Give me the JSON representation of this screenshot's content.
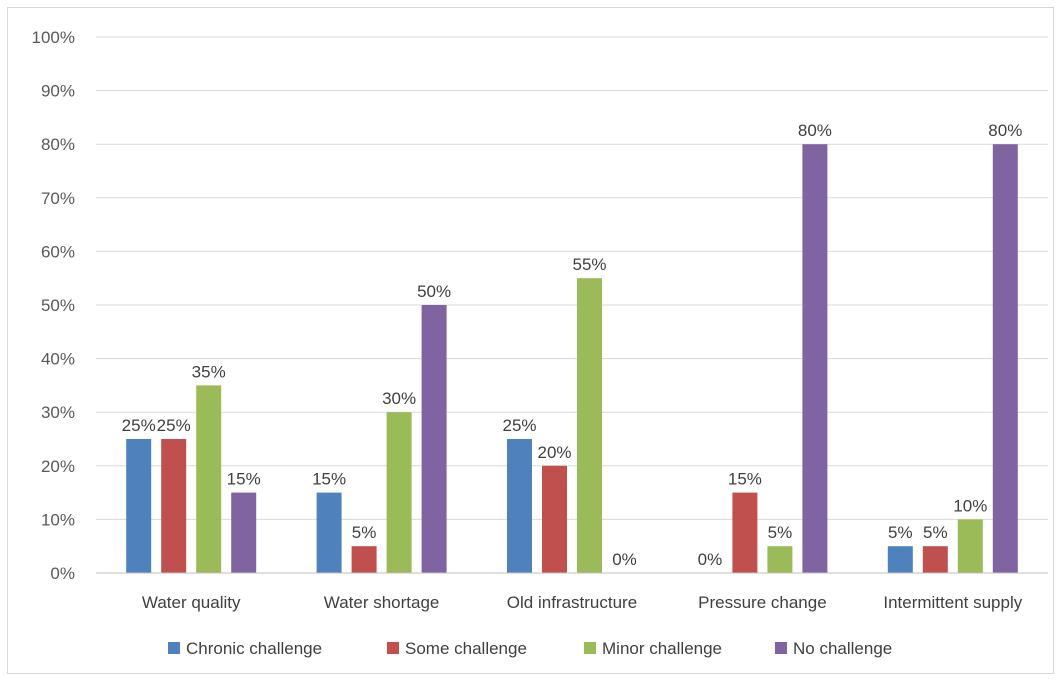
{
  "chart_data": {
    "type": "bar",
    "title": "",
    "xlabel": "",
    "ylabel": "",
    "ylim": [
      0,
      100
    ],
    "y_unit": "%",
    "y_ticks": [
      "0%",
      "10%",
      "20%",
      "30%",
      "40%",
      "50%",
      "60%",
      "70%",
      "80%",
      "90%",
      "100%"
    ],
    "grid": true,
    "legend_position": "bottom",
    "categories": [
      "Water quality",
      "Water shortage",
      "Old infrastructure",
      "Pressure change",
      "Intermittent supply"
    ],
    "series": [
      {
        "name": "Chronic challenge",
        "color": "#4f81bd",
        "values": [
          25,
          15,
          25,
          0,
          5
        ]
      },
      {
        "name": "Some challenge",
        "color": "#c0504d",
        "values": [
          25,
          5,
          20,
          15,
          5
        ]
      },
      {
        "name": "Minor challenge",
        "color": "#9bbb59",
        "values": [
          35,
          30,
          55,
          5,
          10
        ]
      },
      {
        "name": "No challenge",
        "color": "#8064a2",
        "values": [
          15,
          50,
          0,
          80,
          80
        ]
      }
    ]
  }
}
